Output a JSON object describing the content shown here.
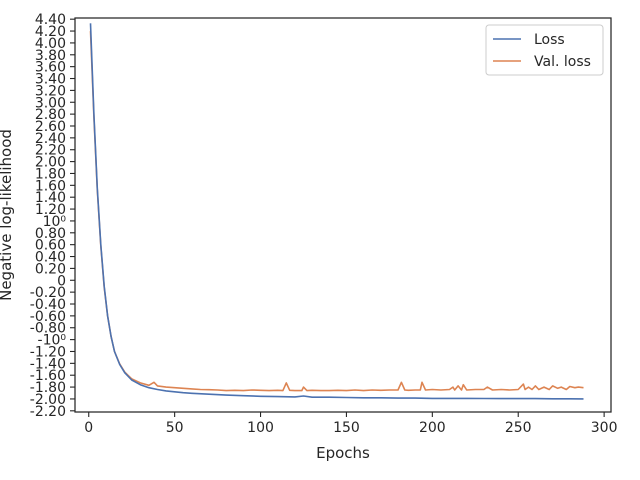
{
  "chart_data": {
    "type": "line",
    "xlabel": "Epochs",
    "ylabel": "Negative log-likelihood",
    "xlim": [
      -8,
      304
    ],
    "ylim": [
      -2.22,
      4.42
    ],
    "x_ticks": [
      0,
      50,
      100,
      150,
      200,
      250,
      300
    ],
    "y_ticks": [
      {
        "value": 4.4,
        "label": "4.40"
      },
      {
        "value": 4.2,
        "label": "4.20"
      },
      {
        "value": 4.0,
        "label": "4.00"
      },
      {
        "value": 3.8,
        "label": "3.80"
      },
      {
        "value": 3.6,
        "label": "3.60"
      },
      {
        "value": 3.4,
        "label": "3.40"
      },
      {
        "value": 3.2,
        "label": "3.20"
      },
      {
        "value": 3.0,
        "label": "3.00"
      },
      {
        "value": 2.8,
        "label": "2.80"
      },
      {
        "value": 2.6,
        "label": "2.60"
      },
      {
        "value": 2.4,
        "label": "2.40"
      },
      {
        "value": 2.2,
        "label": "2.20"
      },
      {
        "value": 2.0,
        "label": "2.00"
      },
      {
        "value": 1.8,
        "label": "1.80"
      },
      {
        "value": 1.6,
        "label": "1.60"
      },
      {
        "value": 1.4,
        "label": "1.40"
      },
      {
        "value": 1.2,
        "label": "1.20"
      },
      {
        "value": 1.0,
        "label": "10⁰"
      },
      {
        "value": 0.8,
        "label": "0.80"
      },
      {
        "value": 0.6,
        "label": "0.60"
      },
      {
        "value": 0.4,
        "label": "0.40"
      },
      {
        "value": 0.2,
        "label": "0.20"
      },
      {
        "value": 0.0,
        "label": "0"
      },
      {
        "value": -0.2,
        "label": "-0.20"
      },
      {
        "value": -0.4,
        "label": "-0.40"
      },
      {
        "value": -0.6,
        "label": "-0.60"
      },
      {
        "value": -0.8,
        "label": "-0.80"
      },
      {
        "value": -1.0,
        "label": "-10⁰"
      },
      {
        "value": -1.2,
        "label": "-1.20"
      },
      {
        "value": -1.4,
        "label": "-1.40"
      },
      {
        "value": -1.6,
        "label": "-1.60"
      },
      {
        "value": -1.8,
        "label": "-1.80"
      },
      {
        "value": -2.0,
        "label": "-2.00"
      },
      {
        "value": -2.2,
        "label": "-2.20"
      }
    ],
    "grid": false,
    "legend_position": "top-right",
    "series": [
      {
        "name": "Loss",
        "color": "#4c72b0",
        "x": [
          1,
          3,
          5,
          7,
          9,
          11,
          13,
          15,
          18,
          21,
          25,
          30,
          35,
          40,
          45,
          50,
          55,
          60,
          70,
          80,
          90,
          100,
          110,
          120,
          125,
          130,
          140,
          150,
          160,
          170,
          180,
          190,
          200,
          210,
          220,
          230,
          240,
          250,
          260,
          270,
          280,
          288
        ],
        "values": [
          4.33,
          2.8,
          1.55,
          0.6,
          -0.1,
          -0.6,
          -0.95,
          -1.2,
          -1.42,
          -1.56,
          -1.68,
          -1.76,
          -1.81,
          -1.84,
          -1.865,
          -1.88,
          -1.895,
          -1.905,
          -1.92,
          -1.935,
          -1.945,
          -1.955,
          -1.96,
          -1.965,
          -1.95,
          -1.97,
          -1.97,
          -1.975,
          -1.98,
          -1.98,
          -1.985,
          -1.985,
          -1.99,
          -1.99,
          -1.99,
          -1.992,
          -1.995,
          -1.995,
          -1.995,
          -1.997,
          -1.998,
          -2.0
        ]
      },
      {
        "name": "Val. loss",
        "color": "#dd8452",
        "x": [
          1,
          3,
          5,
          7,
          9,
          11,
          13,
          15,
          18,
          21,
          25,
          30,
          35,
          38,
          40,
          45,
          50,
          55,
          60,
          65,
          70,
          75,
          80,
          85,
          90,
          95,
          100,
          105,
          110,
          113,
          115,
          117,
          120,
          124,
          125,
          127,
          130,
          135,
          140,
          145,
          150,
          155,
          160,
          165,
          170,
          175,
          180,
          182,
          184,
          186,
          190,
          193,
          194,
          196,
          200,
          205,
          210,
          212,
          213,
          215,
          217,
          218,
          220,
          225,
          230,
          232,
          235,
          240,
          245,
          250,
          253,
          254,
          256,
          258,
          260,
          262,
          265,
          268,
          270,
          273,
          275,
          278,
          280,
          283,
          285,
          288
        ],
        "values": [
          4.2,
          2.75,
          1.52,
          0.58,
          -0.12,
          -0.6,
          -0.95,
          -1.2,
          -1.41,
          -1.55,
          -1.66,
          -1.73,
          -1.77,
          -1.72,
          -1.78,
          -1.8,
          -1.81,
          -1.82,
          -1.83,
          -1.84,
          -1.845,
          -1.85,
          -1.86,
          -1.855,
          -1.86,
          -1.85,
          -1.855,
          -1.86,
          -1.855,
          -1.86,
          -1.73,
          -1.855,
          -1.86,
          -1.86,
          -1.8,
          -1.86,
          -1.855,
          -1.86,
          -1.86,
          -1.855,
          -1.86,
          -1.85,
          -1.86,
          -1.85,
          -1.855,
          -1.85,
          -1.85,
          -1.72,
          -1.85,
          -1.855,
          -1.85,
          -1.85,
          -1.72,
          -1.85,
          -1.84,
          -1.85,
          -1.84,
          -1.8,
          -1.85,
          -1.78,
          -1.85,
          -1.76,
          -1.85,
          -1.84,
          -1.84,
          -1.8,
          -1.85,
          -1.84,
          -1.85,
          -1.84,
          -1.75,
          -1.84,
          -1.8,
          -1.84,
          -1.78,
          -1.84,
          -1.8,
          -1.84,
          -1.78,
          -1.82,
          -1.8,
          -1.84,
          -1.79,
          -1.81,
          -1.8,
          -1.81
        ]
      }
    ]
  }
}
